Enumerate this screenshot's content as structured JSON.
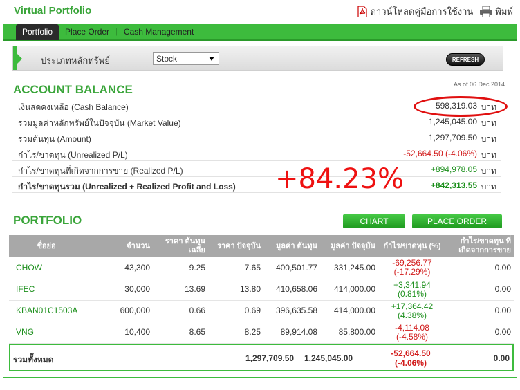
{
  "header": {
    "title": "Virtual Portfolio",
    "download_manual": "ดาวน์โหลดคู่มือการใช้งาน",
    "print": "พิมพ์"
  },
  "tabs": [
    {
      "label": "Portfolio",
      "active": true
    },
    {
      "label": "Place Order",
      "active": false
    },
    {
      "label": "Cash Management",
      "active": false
    }
  ],
  "filter": {
    "label": "ประเภทหลักทรัพย์",
    "selected": "Stock"
  },
  "refresh_label": "REFRESH",
  "account": {
    "title": "ACCOUNT BALANCE",
    "as_of": "As of 06 Dec 2014",
    "unit": "บาท",
    "rows": [
      {
        "label": "เงินสดคงเหลือ (Cash Balance)",
        "value": "598,319.03"
      },
      {
        "label": "รวมมูลค่าหลักทรัพย์ในปัจจุบัน (Market Value)",
        "value": "1,245,045.00"
      },
      {
        "label": "รวมต้นทุน (Amount)",
        "value": "1,297,709.50"
      },
      {
        "label": "กำไร/ขาดทุน (Unrealized P/L)",
        "value": "-52,664.50 (-4.06%)"
      },
      {
        "label": "กำไร/ขาดทุนที่เกิดจากการขาย (Realized P/L)",
        "value": "+894,978.05"
      },
      {
        "label": "กำไร/ขาดทุนรวม (Unrealized + Realized Profit and Loss)",
        "value": "+842,313.55"
      }
    ],
    "annotation": "+84.23%"
  },
  "portfolio": {
    "title": "PORTFOLIO",
    "chart_button": "CHART",
    "order_button": "PLACE ORDER",
    "columns": [
      "ชื่อย่อ",
      "จำนวน",
      "ราคา ต้นทุนเฉลี่ย",
      "ราคา ปัจจุบัน",
      "มูลค่า ต้นทุน",
      "มูลค่า ปัจจุบัน",
      "กำไร/ขาดทุน (%)",
      "กำไร/ขาดทุน ที่ เกิดจากการขาย"
    ],
    "rows": [
      {
        "symbol": "CHOW",
        "qty": "43,300",
        "avg_cost": "9.25",
        "price": "7.65",
        "cost_value": "400,501.77",
        "market_value": "331,245.00",
        "pl": "-69,256.77",
        "pl_pct": "(-17.29%)",
        "realized": "0.00"
      },
      {
        "symbol": "IFEC",
        "qty": "30,000",
        "avg_cost": "13.69",
        "price": "13.80",
        "cost_value": "410,658.06",
        "market_value": "414,000.00",
        "pl": "+3,341.94",
        "pl_pct": "(0.81%)",
        "realized": "0.00"
      },
      {
        "symbol": "KBAN01C1503A",
        "qty": "600,000",
        "avg_cost": "0.66",
        "price": "0.69",
        "cost_value": "396,635.58",
        "market_value": "414,000.00",
        "pl": "+17,364.42",
        "pl_pct": "(4.38%)",
        "realized": "0.00"
      },
      {
        "symbol": "VNG",
        "qty": "10,400",
        "avg_cost": "8.65",
        "price": "8.25",
        "cost_value": "89,914.08",
        "market_value": "85,800.00",
        "pl": "-4,114.08",
        "pl_pct": "(-4.58%)",
        "realized": "0.00"
      }
    ],
    "total": {
      "label": "รวมทั้งหมด",
      "cost_value": "1,297,709.50",
      "market_value": "1,245,045.00",
      "pl": "-52,664.50",
      "pl_pct": "(-4.06%)",
      "realized": "0.00"
    }
  },
  "colors": {
    "brand_green": "#3dbb3d",
    "loss_red": "#d11a1a",
    "gain_green": "#1c8f1c"
  }
}
